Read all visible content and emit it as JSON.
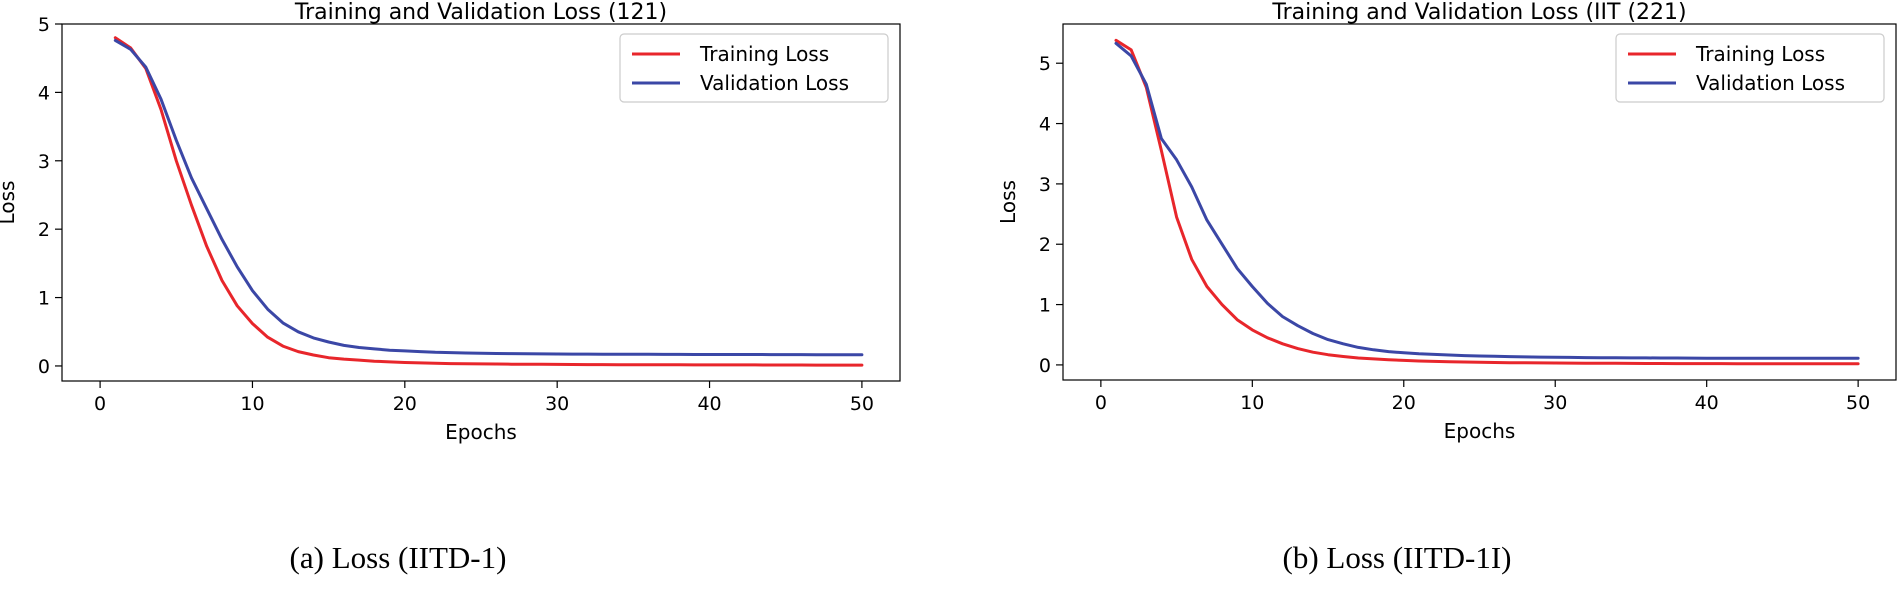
{
  "captions": [
    "(a) Loss (IITD-1)",
    "(b) Loss (IITD-1I)"
  ],
  "colors": {
    "training": "#e8262b",
    "validation": "#3b47a6"
  },
  "chart_data": [
    {
      "type": "line",
      "title": "Training and Validation Loss (121)",
      "xlabel": "Epochs",
      "ylabel": "Loss",
      "xlim": [
        -2.5,
        52.5
      ],
      "ylim": [
        -0.22,
        5.0
      ],
      "xticks": [
        0,
        10,
        20,
        30,
        40,
        50
      ],
      "yticks": [
        0,
        1,
        2,
        3,
        4,
        5
      ],
      "legend": "top-right",
      "x": [
        1,
        2,
        3,
        4,
        5,
        6,
        7,
        8,
        9,
        10,
        11,
        12,
        13,
        14,
        15,
        16,
        17,
        18,
        19,
        20,
        21,
        22,
        23,
        24,
        25,
        26,
        27,
        28,
        29,
        30,
        31,
        32,
        33,
        34,
        35,
        36,
        37,
        38,
        39,
        40,
        41,
        42,
        43,
        44,
        45,
        46,
        47,
        48,
        49,
        50
      ],
      "series": [
        {
          "name": "Training Loss",
          "color": "#e8262b",
          "values": [
            4.8,
            4.65,
            4.35,
            3.75,
            3.0,
            2.35,
            1.75,
            1.25,
            0.88,
            0.62,
            0.42,
            0.29,
            0.21,
            0.16,
            0.12,
            0.1,
            0.085,
            0.07,
            0.06,
            0.05,
            0.045,
            0.04,
            0.035,
            0.032,
            0.03,
            0.028,
            0.026,
            0.025,
            0.024,
            0.022,
            0.021,
            0.02,
            0.02,
            0.019,
            0.018,
            0.018,
            0.017,
            0.017,
            0.016,
            0.016,
            0.015,
            0.015,
            0.015,
            0.014,
            0.014,
            0.014,
            0.013,
            0.013,
            0.013,
            0.013
          ]
        },
        {
          "name": "Validation Loss",
          "color": "#3b47a6",
          "values": [
            4.76,
            4.63,
            4.37,
            3.9,
            3.3,
            2.75,
            2.3,
            1.85,
            1.45,
            1.1,
            0.83,
            0.63,
            0.5,
            0.41,
            0.35,
            0.3,
            0.27,
            0.25,
            0.23,
            0.22,
            0.21,
            0.2,
            0.195,
            0.19,
            0.185,
            0.182,
            0.18,
            0.178,
            0.176,
            0.175,
            0.174,
            0.173,
            0.172,
            0.171,
            0.17,
            0.17,
            0.169,
            0.169,
            0.168,
            0.168,
            0.167,
            0.167,
            0.167,
            0.166,
            0.166,
            0.166,
            0.165,
            0.165,
            0.165,
            0.165
          ]
        }
      ]
    },
    {
      "type": "line",
      "title": "Training and Validation Loss (IIT (221)",
      "xlabel": "Epochs",
      "ylabel": "Loss",
      "xlim": [
        -2.5,
        52.5
      ],
      "ylim": [
        -0.25,
        5.65
      ],
      "xticks": [
        0,
        10,
        20,
        30,
        40,
        50
      ],
      "yticks": [
        0,
        1,
        2,
        3,
        4,
        5
      ],
      "legend": "top-right",
      "x": [
        1,
        2,
        3,
        4,
        5,
        6,
        7,
        8,
        9,
        10,
        11,
        12,
        13,
        14,
        15,
        16,
        17,
        18,
        19,
        20,
        21,
        22,
        23,
        24,
        25,
        26,
        27,
        28,
        29,
        30,
        31,
        32,
        33,
        34,
        35,
        36,
        37,
        38,
        39,
        40,
        41,
        42,
        43,
        44,
        45,
        46,
        47,
        48,
        49,
        50
      ],
      "series": [
        {
          "name": "Training Loss",
          "color": "#e8262b",
          "values": [
            5.38,
            5.22,
            4.6,
            3.55,
            2.45,
            1.75,
            1.3,
            1.0,
            0.75,
            0.58,
            0.45,
            0.35,
            0.27,
            0.21,
            0.17,
            0.14,
            0.115,
            0.1,
            0.085,
            0.075,
            0.065,
            0.058,
            0.052,
            0.048,
            0.044,
            0.04,
            0.037,
            0.035,
            0.033,
            0.031,
            0.03,
            0.028,
            0.027,
            0.026,
            0.025,
            0.024,
            0.023,
            0.022,
            0.022,
            0.021,
            0.021,
            0.02,
            0.02,
            0.02,
            0.019,
            0.019,
            0.019,
            0.018,
            0.018,
            0.018
          ]
        },
        {
          "name": "Validation Loss",
          "color": "#3b47a6",
          "values": [
            5.33,
            5.12,
            4.65,
            3.75,
            3.4,
            2.95,
            2.4,
            2.0,
            1.6,
            1.3,
            1.02,
            0.8,
            0.65,
            0.52,
            0.42,
            0.35,
            0.29,
            0.25,
            0.22,
            0.2,
            0.185,
            0.175,
            0.165,
            0.155,
            0.148,
            0.142,
            0.137,
            0.133,
            0.13,
            0.127,
            0.124,
            0.122,
            0.12,
            0.118,
            0.117,
            0.116,
            0.115,
            0.114,
            0.113,
            0.112,
            0.112,
            0.111,
            0.111,
            0.11,
            0.11,
            0.11,
            0.109,
            0.109,
            0.109,
            0.109
          ]
        }
      ]
    }
  ]
}
